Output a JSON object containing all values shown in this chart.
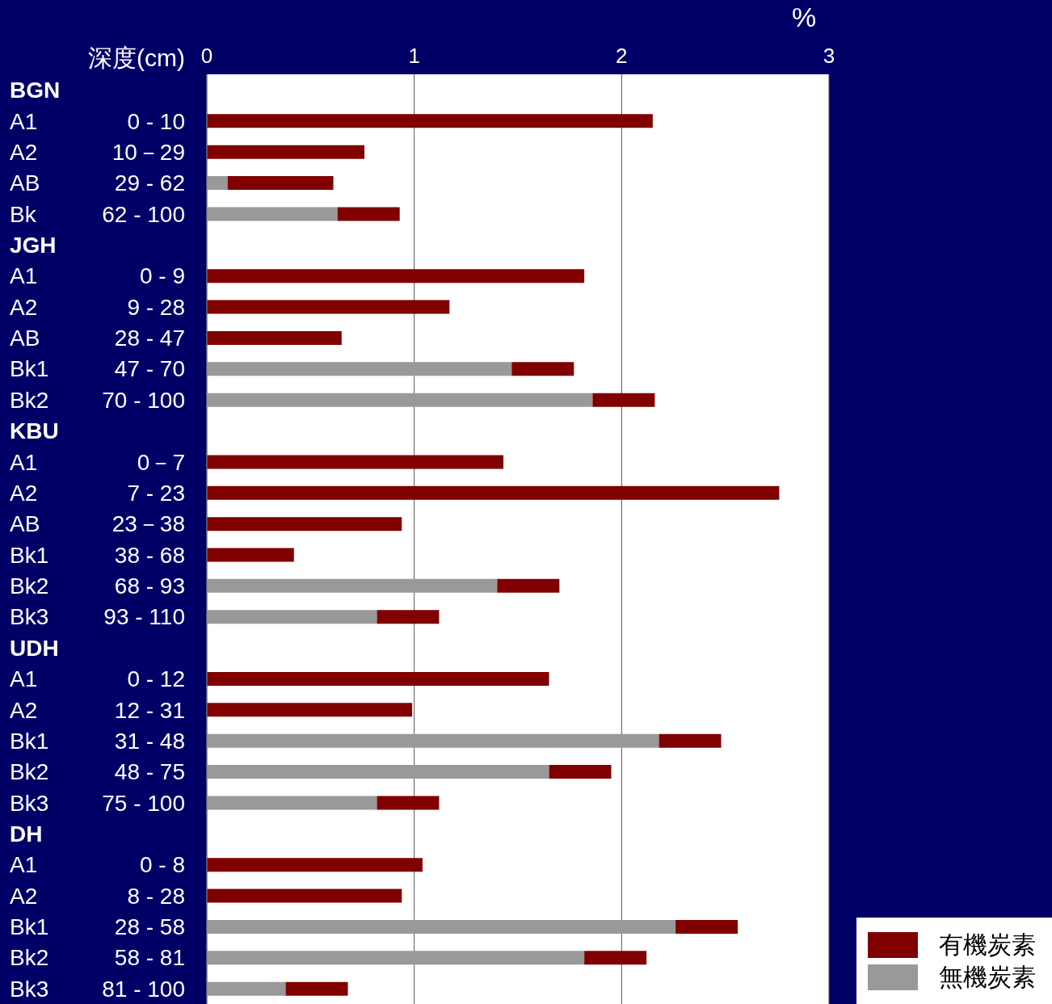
{
  "chart_data": {
    "type": "bar",
    "orientation": "horizontal",
    "stacked": true,
    "xlabel": "%",
    "ylabel": "深度(cm)",
    "categories": [
      "BGN",
      "A1 0 - 10",
      "A2 10－29",
      "AB 29 - 62",
      "Bk 62 - 100",
      "JGH",
      "A1 0 - 9",
      "A2 9 - 28",
      "AB 28 - 47",
      "Bk1 47 - 70",
      "Bk2 70 - 100",
      "KBU",
      "A1 0－7",
      "A2 7 - 23",
      "AB 23－38",
      "Bk1 38 - 68",
      "Bk2 68 - 93",
      "Bk3 93 - 110",
      "UDH",
      "A1 0 - 12",
      "A2 12 - 31",
      "Bk1 31 - 48",
      "Bk2 48 - 75",
      "Bk3 75 - 100",
      "DH",
      "A1 0 - 8",
      "A2 8 - 28",
      "Bk1 28 - 58",
      "Bk2 58 - 81",
      "Bk3 81 - 100"
    ],
    "series": [
      {
        "name": "無機炭素",
        "color": "#999999",
        "values": [
          null,
          null,
          null,
          0.1,
          0.63,
          null,
          null,
          null,
          null,
          1.47,
          1.86,
          null,
          null,
          null,
          null,
          null,
          1.4,
          0.82,
          null,
          null,
          null,
          2.18,
          1.65,
          0.82,
          null,
          null,
          null,
          2.26,
          1.82,
          0.38
        ]
      },
      {
        "name": "有機炭素",
        "color": "#800000",
        "values": [
          null,
          2.15,
          0.76,
          0.51,
          0.3,
          null,
          1.82,
          1.17,
          0.65,
          0.3,
          0.3,
          null,
          1.43,
          2.76,
          0.94,
          0.42,
          0.3,
          0.3,
          null,
          1.65,
          0.99,
          0.3,
          0.3,
          0.3,
          null,
          1.04,
          0.94,
          0.3,
          0.3,
          0.3
        ]
      }
    ],
    "xlim": [
      0,
      3
    ],
    "xticks": [
      0,
      1,
      2,
      3
    ],
    "grid": "x",
    "legend": "bottom right"
  }
}
